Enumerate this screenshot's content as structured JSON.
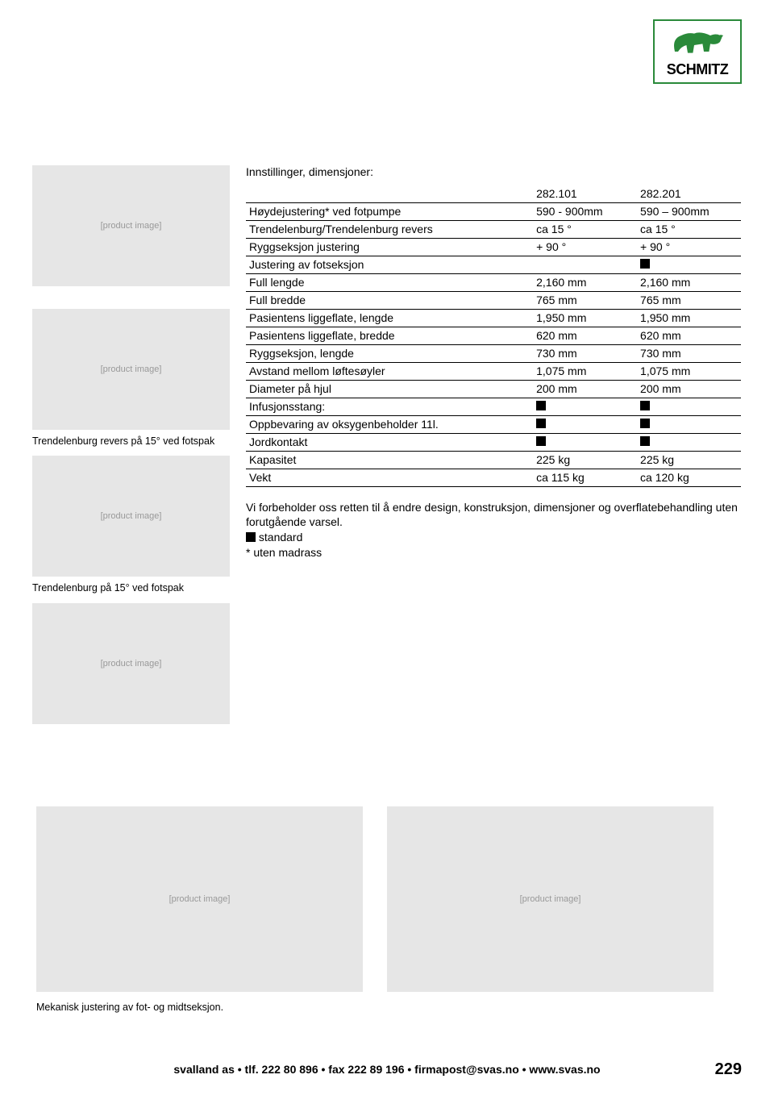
{
  "logo": {
    "brand": "SCHMITZ",
    "border_color": "#2a8a3a",
    "animal_color": "#2a8a3a"
  },
  "captions": {
    "left1": "Trendelenburg revers på 15° ved fotspak",
    "left2": "Trendelenburg på 15° ved fotspak",
    "bottom": "Mekanisk justering av fot- og midtseksjon."
  },
  "spec_title": "Innstillinger, dimensjoner:",
  "table": {
    "header": {
      "col2": "282.101",
      "col3": "282.201"
    },
    "rows": [
      {
        "label": "Høydejustering* ved fotpumpe",
        "c2": "590 - 900mm",
        "c3": "590 – 900mm"
      },
      {
        "label": "Trendelenburg/Trendelenburg revers",
        "c2": "ca 15 °",
        "c3": "ca 15 °"
      },
      {
        "label": "Ryggseksjon justering",
        "c2": "+ 90 °",
        "c3": "+ 90 °"
      },
      {
        "label": "Justering av fotseksjon",
        "c2": "",
        "c3": "■"
      },
      {
        "label": "Full lengde",
        "c2": "2,160 mm",
        "c3": "2,160 mm"
      },
      {
        "label": "Full bredde",
        "c2": "765 mm",
        "c3": "765 mm"
      },
      {
        "label": "Pasientens liggeflate, lengde",
        "c2": "1,950 mm",
        "c3": "1,950 mm"
      },
      {
        "label": "Pasientens liggeflate, bredde",
        "c2": "620 mm",
        "c3": "620 mm"
      },
      {
        "label": "Ryggseksjon, lengde",
        "c2": "730 mm",
        "c3": "730 mm"
      },
      {
        "label": "Avstand mellom løftesøyler",
        "c2": "1,075 mm",
        "c3": "1,075 mm"
      },
      {
        "label": "Diameter på hjul",
        "c2": "200 mm",
        "c3": "200 mm"
      },
      {
        "label": "Infusjonsstang:",
        "c2": "■",
        "c3": "■"
      },
      {
        "label": "Oppbevaring av oksygenbeholder 11l.",
        "c2": "■",
        "c3": "■"
      },
      {
        "label": "Jordkontakt",
        "c2": "■",
        "c3": "■"
      },
      {
        "label": "Kapasitet",
        "c2": "225 kg",
        "c3": "225 kg"
      },
      {
        "label": "Vekt",
        "c2": "ca 115 kg",
        "c3": "ca 120 kg"
      }
    ]
  },
  "note": {
    "line1": "Vi forbeholder oss retten til å endre design, konstruksjon, dimensjoner og overflatebehandling uten forutgående varsel.",
    "standard": "standard",
    "asterisk": "*  uten madrass"
  },
  "footer": "svalland as • tlf. 222 80 896 • fax 222 89 196 • firmapost@svas.no • www.svas.no",
  "page_number": "229",
  "image_placeholder": "[product image]"
}
